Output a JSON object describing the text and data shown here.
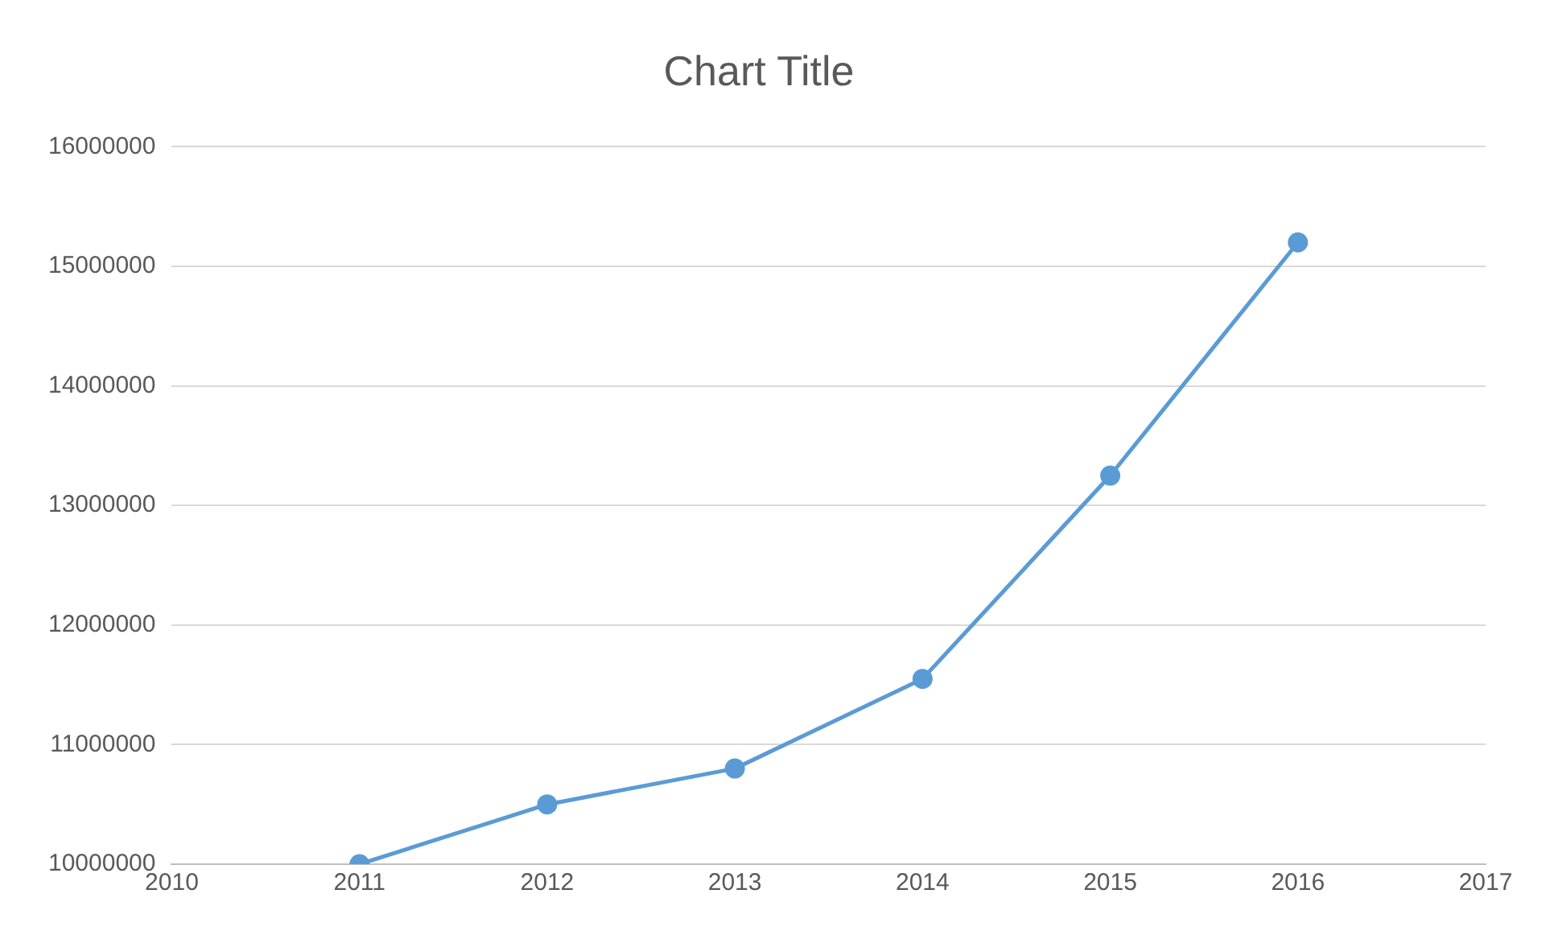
{
  "chart_data": {
    "type": "line",
    "title": "Chart Title",
    "x": [
      2011,
      2012,
      2013,
      2014,
      2015,
      2016
    ],
    "series": [
      {
        "color": "#5b9bd5",
        "values": [
          10000000,
          10500000,
          10800000,
          11550000,
          13250000,
          15200000
        ]
      }
    ],
    "xlim": [
      2010,
      2017
    ],
    "xticks": [
      2010,
      2011,
      2012,
      2013,
      2014,
      2015,
      2016,
      2017
    ],
    "ylim": [
      10000000,
      16000000
    ],
    "yticks": [
      10000000,
      11000000,
      12000000,
      13000000,
      14000000,
      15000000,
      16000000
    ],
    "grid": "y",
    "legend": false,
    "marker": "circle",
    "line_style": "solid"
  }
}
